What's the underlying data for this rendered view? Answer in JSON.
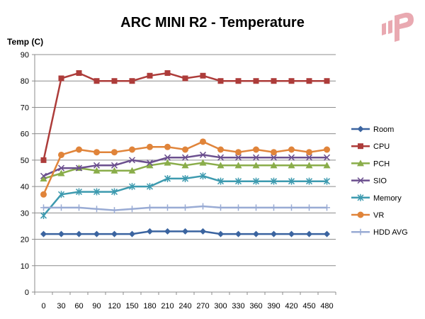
{
  "chart_data": {
    "type": "line",
    "title": "ARC MINI R2 - Temperature",
    "ylabel": "Temp (C)",
    "xlabel": "",
    "ylim": [
      0,
      90
    ],
    "yticks": [
      0,
      10,
      20,
      30,
      40,
      50,
      60,
      70,
      80,
      90
    ],
    "x": [
      0,
      30,
      60,
      90,
      120,
      150,
      180,
      210,
      240,
      270,
      300,
      330,
      360,
      390,
      420,
      450,
      480
    ],
    "grid": "horizontal",
    "legend_position": "right",
    "series": [
      {
        "name": "Room",
        "color": "#3b64a0",
        "marker": "diamond",
        "values": [
          22,
          22,
          22,
          22,
          22,
          22,
          23,
          23,
          23,
          23,
          22,
          22,
          22,
          22,
          22,
          22,
          22
        ]
      },
      {
        "name": "CPU",
        "color": "#ad3c3a",
        "marker": "square",
        "values": [
          50,
          81,
          83,
          80,
          80,
          80,
          82,
          83,
          81,
          82,
          80,
          80,
          80,
          80,
          80,
          80,
          80
        ]
      },
      {
        "name": "PCH",
        "color": "#8aad4a",
        "marker": "triangle",
        "values": [
          43,
          45,
          47,
          46,
          46,
          46,
          48,
          49,
          48,
          49,
          48,
          48,
          48,
          48,
          48,
          48,
          48
        ]
      },
      {
        "name": "SIO",
        "color": "#6b4f8e",
        "marker": "x",
        "values": [
          44,
          47,
          47,
          48,
          48,
          50,
          49,
          51,
          51,
          52,
          51,
          51,
          51,
          51,
          51,
          51,
          51
        ]
      },
      {
        "name": "Memory",
        "color": "#3d9aaf",
        "marker": "star",
        "values": [
          29,
          37,
          38,
          38,
          38,
          40,
          40,
          43,
          43,
          44,
          42,
          42,
          42,
          42,
          42,
          42,
          42
        ]
      },
      {
        "name": "VR",
        "color": "#e0843a",
        "marker": "circle",
        "values": [
          37,
          52,
          54,
          53,
          53,
          54,
          55,
          55,
          54,
          57,
          54,
          53,
          54,
          53,
          54,
          53,
          54
        ]
      },
      {
        "name": "HDD AVG",
        "color": "#99abd4",
        "marker": "plus",
        "values": [
          32,
          32,
          32,
          31.5,
          31,
          31.5,
          32,
          32,
          32,
          32.5,
          32,
          32,
          32,
          32,
          32,
          32,
          32
        ]
      }
    ]
  },
  "logo": {
    "color": "#e9a9b1"
  }
}
